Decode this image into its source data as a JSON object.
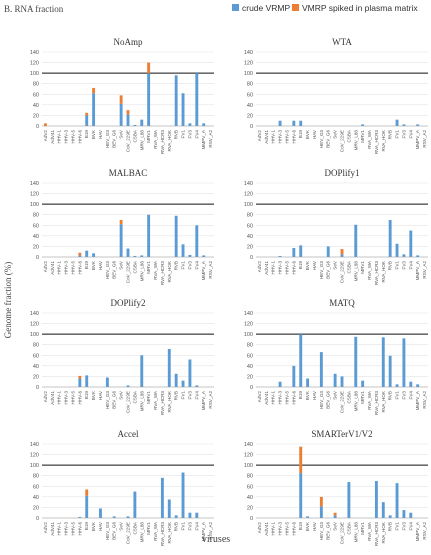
{
  "figure": {
    "section_label": "B. RNA fraction",
    "y_axis_label": "Genome fraction (%)",
    "x_axis_label": "viruses"
  },
  "legend": [
    {
      "name": "crude VRMP",
      "color": "#5b9bd5"
    },
    {
      "name": "VMRP spiked in plasma matrix",
      "color": "#ed7d31"
    }
  ],
  "categories": [
    "AdV2",
    "AdV41",
    "HHV-1",
    "HHV-3",
    "HHV-5",
    "HHV-6",
    "B19",
    "BVK",
    "HAV",
    "HEV_G3",
    "BEV_G6",
    "SeV",
    "CoV_229E",
    "CSBA",
    "MRV_L88",
    "MRV1",
    "RVA_WA",
    "RVA_HCR3",
    "RVA_HOK",
    "RVB",
    "FV1",
    "FV3",
    "FV4",
    "MMPV_A",
    "RSV_A2"
  ],
  "reference_line": 100,
  "chart_data": [
    {
      "type": "bar",
      "title": "NoAmp",
      "ylim": [
        0,
        140
      ],
      "yticks": [
        0,
        20,
        40,
        60,
        80,
        100,
        120,
        140
      ],
      "stacked": true,
      "series": [
        {
          "name": "crude VRMP",
          "values": [
            0,
            0,
            0,
            0,
            0,
            0,
            20,
            62,
            0,
            0,
            0,
            42,
            22,
            2,
            12,
            100,
            0,
            0,
            0,
            96,
            62,
            5,
            100,
            5,
            0
          ]
        },
        {
          "name": "VMRP spiked in plasma matrix",
          "values": [
            5,
            0,
            0,
            0,
            0,
            0,
            5,
            10,
            0,
            0,
            0,
            16,
            8,
            0,
            0,
            20,
            0,
            0,
            0,
            0,
            0,
            0,
            0,
            0,
            0
          ]
        }
      ]
    },
    {
      "type": "bar",
      "title": "WTA",
      "ylim": [
        0,
        140
      ],
      "yticks": [
        0,
        20,
        40,
        60,
        80,
        100,
        120,
        140
      ],
      "stacked": true,
      "series": [
        {
          "name": "crude VRMP",
          "values": [
            0,
            0,
            0,
            10,
            0,
            10,
            10,
            0,
            0,
            0,
            0,
            0,
            0,
            0,
            0,
            3,
            0,
            0,
            0,
            0,
            12,
            3,
            0,
            3,
            0
          ]
        },
        {
          "name": "VMRP spiked in plasma matrix",
          "values": [
            0,
            0,
            0,
            0,
            0,
            0,
            0,
            0,
            0,
            0,
            0,
            0,
            0,
            0,
            0,
            0,
            0,
            0,
            0,
            0,
            0,
            0,
            0,
            0,
            0
          ]
        }
      ]
    },
    {
      "type": "bar",
      "title": "MALBAC",
      "ylim": [
        0,
        140
      ],
      "yticks": [
        0,
        20,
        40,
        60,
        80,
        100,
        120,
        140
      ],
      "stacked": true,
      "series": [
        {
          "name": "crude VRMP",
          "values": [
            0,
            0,
            0,
            0,
            0,
            3,
            12,
            7,
            0,
            0,
            0,
            62,
            16,
            2,
            3,
            80,
            0,
            0,
            0,
            78,
            24,
            4,
            60,
            3,
            0
          ]
        },
        {
          "name": "VMRP spiked in plasma matrix",
          "values": [
            0,
            0,
            0,
            0,
            0,
            5,
            0,
            0,
            0,
            0,
            0,
            8,
            0,
            0,
            0,
            0,
            0,
            0,
            0,
            0,
            0,
            0,
            0,
            0,
            0
          ]
        }
      ]
    },
    {
      "type": "bar",
      "title": "DOPlify1",
      "ylim": [
        0,
        140
      ],
      "yticks": [
        0,
        20,
        40,
        60,
        80,
        100,
        120,
        140
      ],
      "stacked": true,
      "series": [
        {
          "name": "crude VRMP",
          "values": [
            0,
            0,
            0,
            2,
            0,
            17,
            22,
            0,
            0,
            0,
            20,
            0,
            5,
            0,
            61,
            0,
            0,
            0,
            0,
            70,
            25,
            5,
            50,
            3,
            0
          ]
        },
        {
          "name": "VMRP spiked in plasma matrix",
          "values": [
            0,
            0,
            0,
            0,
            0,
            0,
            0,
            0,
            0,
            0,
            0,
            0,
            10,
            0,
            0,
            0,
            0,
            0,
            0,
            0,
            0,
            0,
            0,
            0,
            0
          ]
        }
      ]
    },
    {
      "type": "bar",
      "title": "DOPlify2",
      "ylim": [
        0,
        140
      ],
      "yticks": [
        0,
        20,
        40,
        60,
        80,
        100,
        120,
        140
      ],
      "stacked": true,
      "series": [
        {
          "name": "crude VRMP",
          "values": [
            0,
            0,
            0,
            0,
            0,
            16,
            22,
            0,
            0,
            18,
            0,
            0,
            3,
            0,
            60,
            0,
            0,
            0,
            72,
            25,
            12,
            52,
            3,
            0,
            0
          ]
        },
        {
          "name": "VMRP spiked in plasma matrix",
          "values": [
            0,
            0,
            0,
            0,
            0,
            5,
            0,
            0,
            0,
            0,
            0,
            0,
            0,
            0,
            0,
            0,
            0,
            0,
            0,
            0,
            0,
            0,
            0,
            0,
            0
          ]
        }
      ]
    },
    {
      "type": "bar",
      "title": "MATQ",
      "ylim": [
        0,
        140
      ],
      "yticks": [
        0,
        20,
        40,
        60,
        80,
        100,
        120,
        140
      ],
      "stacked": true,
      "series": [
        {
          "name": "crude VRMP",
          "values": [
            0,
            0,
            0,
            10,
            0,
            40,
            100,
            16,
            0,
            66,
            0,
            25,
            20,
            0,
            95,
            12,
            0,
            0,
            94,
            59,
            5,
            92,
            10,
            5,
            0
          ]
        },
        {
          "name": "VMRP spiked in plasma matrix",
          "values": [
            0,
            0,
            0,
            0,
            0,
            0,
            0,
            0,
            0,
            0,
            0,
            0,
            0,
            0,
            0,
            0,
            0,
            0,
            0,
            0,
            0,
            0,
            0,
            0,
            0
          ]
        }
      ]
    },
    {
      "type": "bar",
      "title": "Accel",
      "ylim": [
        0,
        140
      ],
      "yticks": [
        0,
        20,
        40,
        60,
        80,
        100,
        120,
        140
      ],
      "stacked": true,
      "series": [
        {
          "name": "crude VRMP",
          "values": [
            0,
            0,
            0,
            0,
            0,
            2,
            42,
            0,
            18,
            0,
            3,
            0,
            3,
            50,
            0,
            0,
            0,
            76,
            35,
            5,
            86,
            10,
            10,
            0,
            0
          ]
        },
        {
          "name": "VMRP spiked in plasma matrix",
          "values": [
            0,
            0,
            0,
            0,
            0,
            0,
            12,
            0,
            0,
            0,
            0,
            0,
            0,
            0,
            0,
            0,
            0,
            0,
            0,
            0,
            0,
            0,
            0,
            0,
            0
          ]
        }
      ]
    },
    {
      "type": "bar",
      "title": "SMARTerV1/V2",
      "ylim": [
        0,
        140
      ],
      "yticks": [
        0,
        20,
        40,
        60,
        80,
        100,
        120,
        140
      ],
      "stacked": true,
      "series": [
        {
          "name": "crude VRMP",
          "values": [
            0,
            0,
            0,
            0,
            0,
            0,
            85,
            3,
            0,
            22,
            0,
            5,
            0,
            68,
            0,
            0,
            0,
            70,
            30,
            5,
            66,
            15,
            10,
            0,
            0
          ]
        },
        {
          "name": "VMRP spiked in plasma matrix",
          "values": [
            0,
            0,
            0,
            0,
            0,
            0,
            50,
            0,
            0,
            18,
            0,
            5,
            0,
            0,
            0,
            0,
            0,
            0,
            0,
            0,
            0,
            0,
            0,
            0,
            0
          ]
        }
      ]
    }
  ]
}
